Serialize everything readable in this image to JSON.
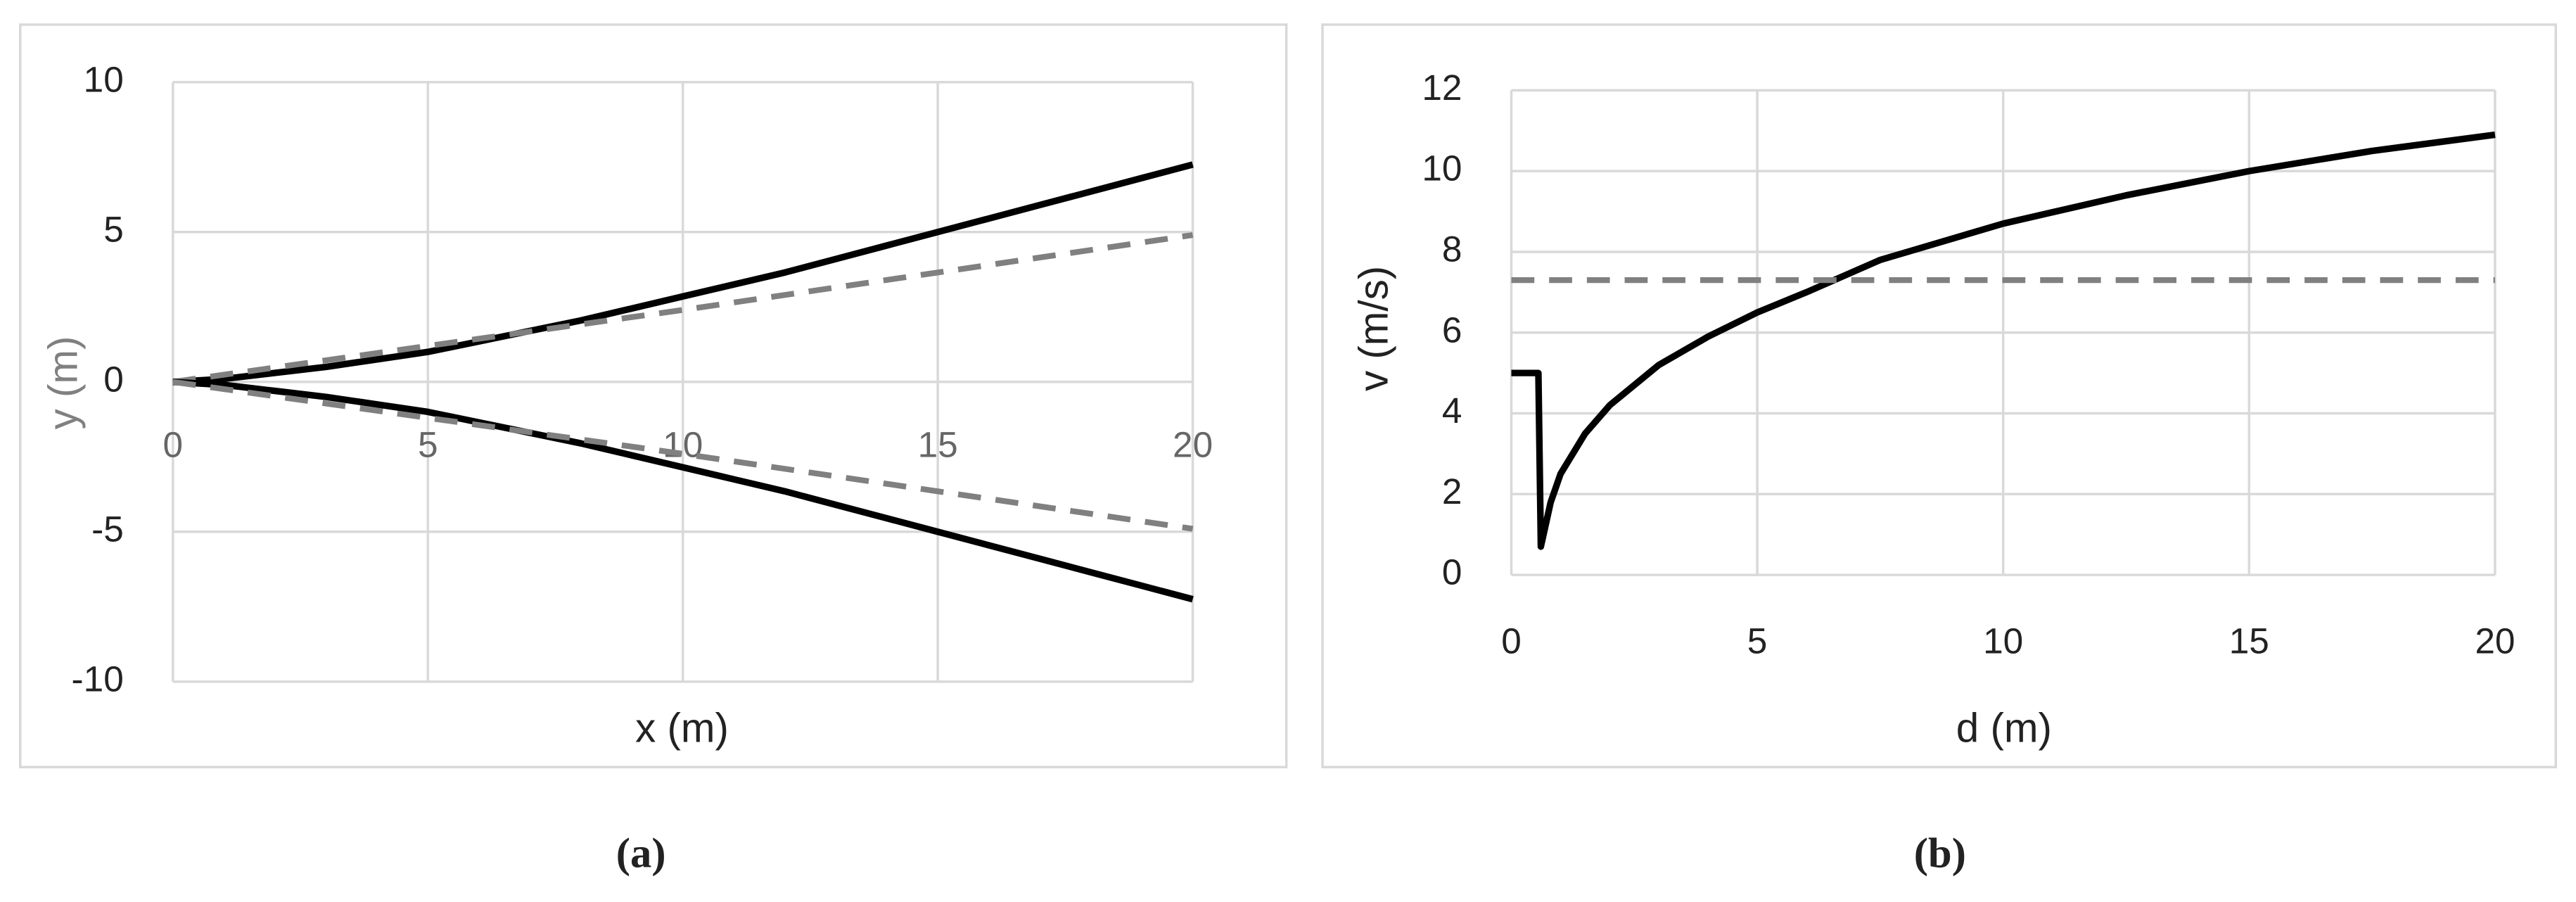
{
  "chart_data": [
    {
      "type": "line",
      "x_label": "x (m)",
      "y_label": "y (m)",
      "caption": "(a)",
      "xlim": [
        0,
        20
      ],
      "xticks": [
        0,
        5,
        10,
        15,
        20
      ],
      "ylim": [
        -10,
        10
      ],
      "yticks": [
        -10,
        -5,
        0,
        5,
        10
      ],
      "grid": true,
      "series": [
        {
          "color": "#000000",
          "dashed": false,
          "x": [
            0,
            1,
            2,
            3,
            4,
            5,
            6,
            7,
            8,
            9,
            10,
            11,
            12,
            13,
            14,
            15,
            16,
            17,
            18,
            19,
            20
          ],
          "values": [
            0,
            0.1,
            0.3,
            0.5,
            0.75,
            1.0,
            1.35,
            1.7,
            2.05,
            2.45,
            2.85,
            3.25,
            3.65,
            4.1,
            4.55,
            5.0,
            5.45,
            5.9,
            6.35,
            6.8,
            7.25
          ]
        },
        {
          "color": "#808080",
          "dashed": true,
          "x": [
            0,
            5,
            10,
            15,
            20
          ],
          "values": [
            0,
            1.2,
            2.4,
            3.65,
            4.9
          ]
        },
        {
          "color": "#000000",
          "dashed": false,
          "x": [
            0,
            1,
            2,
            3,
            4,
            5,
            6,
            7,
            8,
            9,
            10,
            11,
            12,
            13,
            14,
            15,
            16,
            17,
            18,
            19,
            20
          ],
          "values": [
            0,
            -0.1,
            -0.3,
            -0.5,
            -0.75,
            -1.0,
            -1.35,
            -1.7,
            -2.05,
            -2.45,
            -2.85,
            -3.25,
            -3.65,
            -4.1,
            -4.55,
            -5.0,
            -5.45,
            -5.9,
            -6.35,
            -6.8,
            -7.25
          ]
        },
        {
          "color": "#808080",
          "dashed": true,
          "x": [
            0,
            5,
            10,
            15,
            20
          ],
          "values": [
            0,
            -1.2,
            -2.4,
            -3.65,
            -4.9
          ]
        }
      ]
    },
    {
      "type": "line",
      "x_label": "d (m)",
      "y_label": "v (m/s)",
      "caption": "(b)",
      "xlim": [
        0,
        20
      ],
      "xticks": [
        0,
        5,
        10,
        15,
        20
      ],
      "ylim": [
        0,
        12
      ],
      "yticks": [
        0,
        2,
        4,
        6,
        8,
        10,
        12
      ],
      "grid": true,
      "series": [
        {
          "color": "#000000",
          "dashed": false,
          "x": [
            0,
            0.55,
            0.6,
            0.8,
            1,
            1.5,
            2,
            3,
            4,
            5,
            6,
            7.5,
            10,
            12.5,
            15,
            17.5,
            20
          ],
          "values": [
            5,
            5,
            0.7,
            1.8,
            2.5,
            3.5,
            4.2,
            5.2,
            5.9,
            6.5,
            7.0,
            7.8,
            8.7,
            9.4,
            10.0,
            10.5,
            10.9
          ]
        },
        {
          "color": "#808080",
          "dashed": true,
          "x": [
            0,
            20
          ],
          "values": [
            7.3,
            7.3
          ]
        }
      ]
    }
  ]
}
